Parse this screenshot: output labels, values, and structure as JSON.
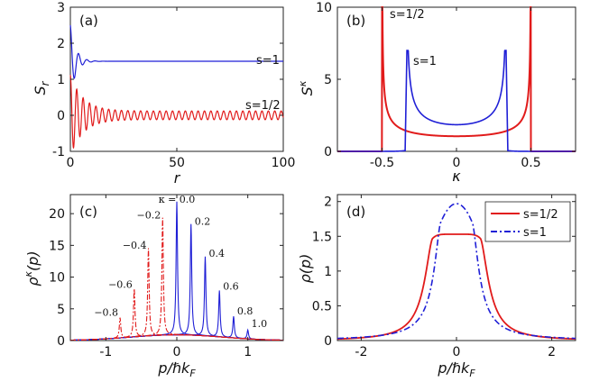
{
  "colors": {
    "blue": "#1f1fd6",
    "red": "#e11b1b",
    "axis": "#222222"
  },
  "chart_data": [
    {
      "panel": "(a)",
      "type": "line",
      "xlabel": "r",
      "ylabel": "S_r",
      "xlim": [
        0,
        100
      ],
      "ylim": [
        -1,
        3
      ],
      "xticks": [
        "0",
        "50",
        "100"
      ],
      "yticks": [
        "-1",
        "0",
        "1",
        "2",
        "3"
      ],
      "series": [
        {
          "name": "s=1",
          "color": "blue",
          "start": 2.5,
          "asymptote": 1.5,
          "amp": 0.9,
          "period": 3.9,
          "decay": 12
        },
        {
          "name": "s=1/2",
          "color": "red",
          "start": 1.0,
          "asymptote": 0.0,
          "amp": 0.55,
          "period": 3.0,
          "decay": 40
        }
      ],
      "annotations": [
        {
          "text": "s=1",
          "x": 92,
          "y": 1.75
        },
        {
          "text": "s=1/2",
          "x": 90,
          "y": 0.35
        }
      ]
    },
    {
      "panel": "(b)",
      "type": "line",
      "xlabel": "κ",
      "ylabel": "S^κ",
      "xlim": [
        -0.8,
        0.8
      ],
      "ylim": [
        0,
        10
      ],
      "xticks": [
        "-0.5",
        "0",
        "0.5"
      ],
      "yticks": [
        "0",
        "5",
        "10"
      ],
      "series": [
        {
          "name": "s=1/2",
          "color": "red",
          "edge": 0.5,
          "center": 1.05,
          "outside": 0.0
        },
        {
          "name": "s=1",
          "color": "blue",
          "edge": 0.333,
          "center": 1.85,
          "peak": 7.0,
          "outside": 0.08
        }
      ],
      "annotations": [
        {
          "text": "s=1/2",
          "x": -0.46,
          "y": 9.3
        },
        {
          "text": "s=1",
          "x": -0.3,
          "y": 6.2
        }
      ]
    },
    {
      "panel": "(c)",
      "type": "line",
      "xlabel": "p/ℏk_F",
      "ylabel": "ρ^κ(p)",
      "xlim": [
        -1.5,
        1.5
      ],
      "ylim": [
        0,
        23
      ],
      "xticks": [
        "-1",
        "0",
        "1"
      ],
      "yticks": [
        "0",
        "5",
        "10",
        "15",
        "20"
      ],
      "kappa_curves": [
        {
          "kappa": 0.0,
          "peak": 21,
          "label": "κ = 0.0",
          "color": "blue"
        },
        {
          "kappa": 0.2,
          "peak": 17.5,
          "label": "0.2",
          "color": "blue"
        },
        {
          "kappa": 0.4,
          "peak": 12.5,
          "label": "0.4",
          "color": "blue"
        },
        {
          "kappa": 0.6,
          "peak": 7.3,
          "label": "0.6",
          "color": "blue"
        },
        {
          "kappa": 0.8,
          "peak": 3.4,
          "label": "0.8",
          "color": "blue"
        },
        {
          "kappa": 1.0,
          "peak": 1.4,
          "label": "1.0",
          "color": "blue"
        },
        {
          "kappa": -0.2,
          "peak": 18.5,
          "label": "−0.2",
          "color": "red"
        },
        {
          "kappa": -0.4,
          "peak": 13.8,
          "label": "−0.4",
          "color": "red"
        },
        {
          "kappa": -0.6,
          "peak": 7.6,
          "label": "−0.6",
          "color": "red"
        },
        {
          "kappa": -0.8,
          "peak": 3.2,
          "label": "−0.8",
          "color": "red"
        }
      ]
    },
    {
      "panel": "(d)",
      "type": "line",
      "xlabel": "p/ℏk_F",
      "ylabel": "ρ(p)",
      "xlim": [
        -2.5,
        2.5
      ],
      "ylim": [
        0,
        2.1
      ],
      "xticks": [
        "-2",
        "0",
        "2"
      ],
      "yticks": [
        "0",
        "0.5",
        "1",
        "1.5",
        "2"
      ],
      "legend": {
        "position": "top-right",
        "entries": [
          "s=1/2",
          "s=1"
        ]
      },
      "series": [
        {
          "name": "s=1/2",
          "color": "red",
          "style": "solid",
          "plateau": 1.53,
          "edge": 0.5
        },
        {
          "name": "s=1",
          "color": "blue",
          "style": "dashdot",
          "peak": 1.97,
          "edge": 0.33
        }
      ]
    }
  ]
}
